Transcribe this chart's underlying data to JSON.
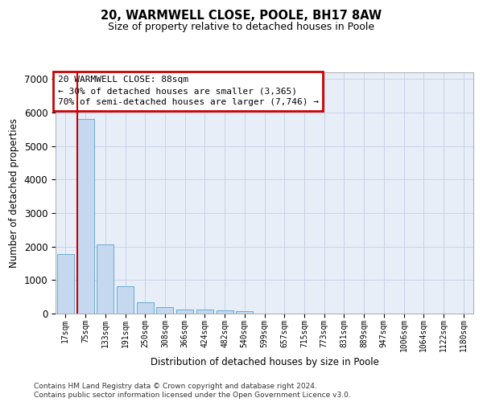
{
  "title_line1": "20, WARMWELL CLOSE, POOLE, BH17 8AW",
  "title_line2": "Size of property relative to detached houses in Poole",
  "xlabel": "Distribution of detached houses by size in Poole",
  "ylabel": "Number of detached properties",
  "footnote1": "Contains HM Land Registry data © Crown copyright and database right 2024.",
  "footnote2": "Contains public sector information licensed under the Open Government Licence v3.0.",
  "bar_labels": [
    "17sqm",
    "75sqm",
    "133sqm",
    "191sqm",
    "250sqm",
    "308sqm",
    "366sqm",
    "424sqm",
    "482sqm",
    "540sqm",
    "599sqm",
    "657sqm",
    "715sqm",
    "773sqm",
    "831sqm",
    "889sqm",
    "947sqm",
    "1006sqm",
    "1064sqm",
    "1122sqm",
    "1180sqm"
  ],
  "bar_values": [
    1780,
    5800,
    2060,
    820,
    340,
    190,
    120,
    110,
    100,
    80,
    0,
    0,
    0,
    0,
    0,
    0,
    0,
    0,
    0,
    0,
    0
  ],
  "bar_color": "#c5d8f0",
  "bar_edge_color": "#6aaad4",
  "annotation_line1": "20 WARMWELL CLOSE: 88sqm",
  "annotation_line2": "← 30% of detached houses are smaller (3,365)",
  "annotation_line3": "70% of semi-detached houses are larger (7,746) →",
  "annotation_box_edge": "#cc0000",
  "vline_x": 0.575,
  "vline_color": "#cc0000",
  "ylim_max": 7200,
  "yticks": [
    0,
    1000,
    2000,
    3000,
    4000,
    5000,
    6000,
    7000
  ],
  "grid_color": "#c8d4e8",
  "bg_color": "#e8eef8"
}
